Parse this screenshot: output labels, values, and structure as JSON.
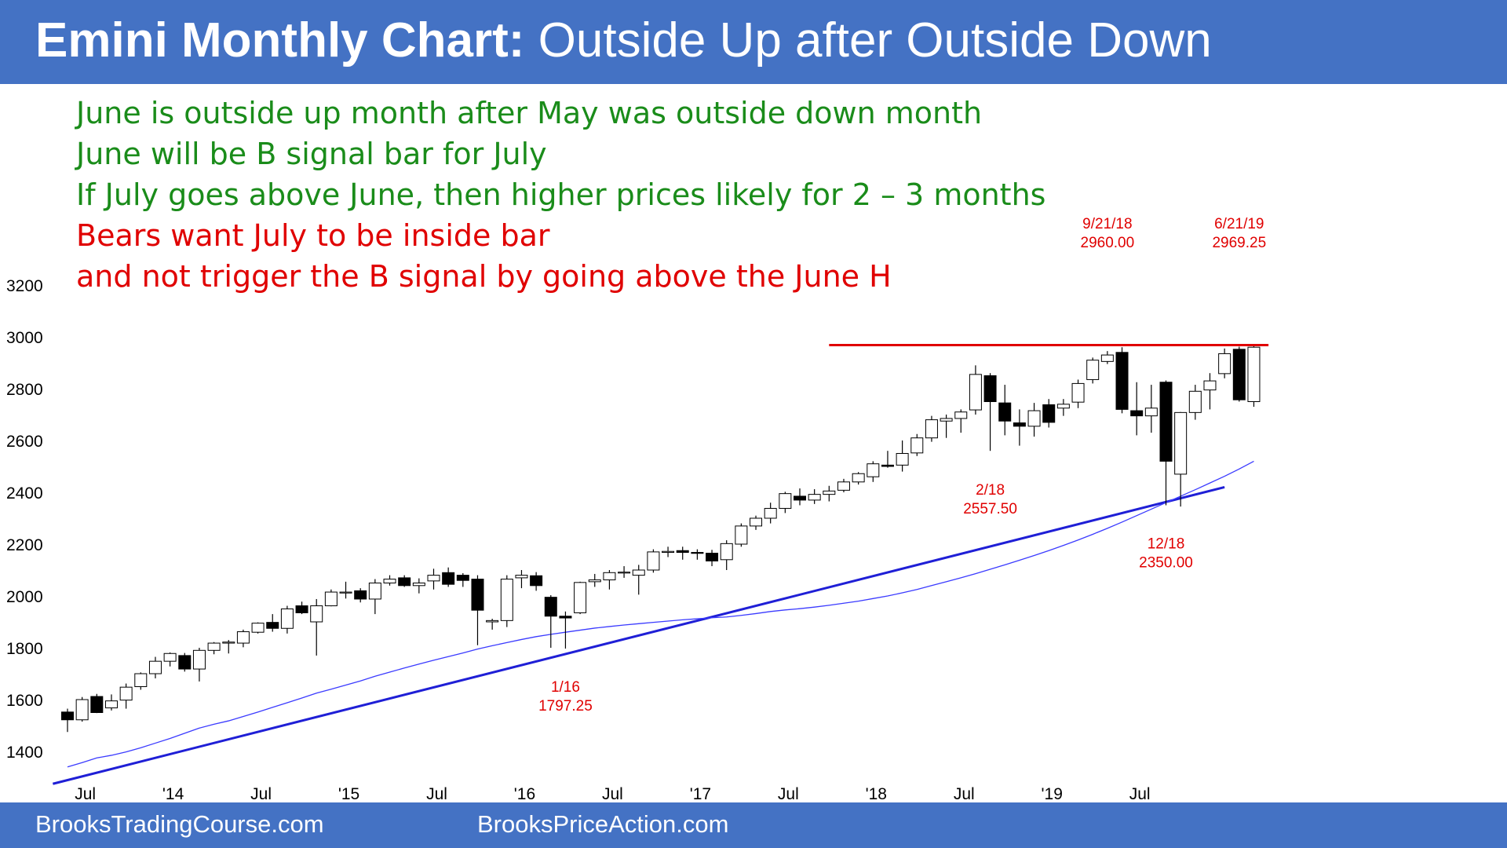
{
  "header": {
    "title_bold": "Emini Monthly Chart:",
    "title_rest": " Outside Up after Outside Down"
  },
  "notes": [
    {
      "text": "June is outside up month after May was outside down month",
      "color": "#1a8c1a"
    },
    {
      "text": "June will be B signal bar for July",
      "color": "#1a8c1a"
    },
    {
      "text": "If July goes above June, then higher prices likely for 2 – 3 months",
      "color": "#1a8c1a"
    },
    {
      "text": "Bears want July to be inside bar",
      "color": "#e00000"
    },
    {
      "text": "and not trigger the B signal by going above the June H",
      "color": "#e00000"
    }
  ],
  "footer": {
    "left": "BrooksTradingCourse.com",
    "right": "BrooksPriceAction.com"
  },
  "colors": {
    "brand": "#4472c4",
    "bull": "#ffffff",
    "bear": "#000000",
    "moving_average": "#3b3bff",
    "trend_line": "#1f1fd6",
    "resistance_line": "#e00000",
    "annotation": "#e00000"
  },
  "chart_data": {
    "type": "candlestick",
    "title": "Emini Monthly Chart",
    "ylim": [
      1300,
      3300
    ],
    "y_ticks": [
      1400,
      1600,
      1800,
      2000,
      2200,
      2400,
      2600,
      2800,
      3000,
      3200
    ],
    "x_ticks": [
      "Jul",
      "'14",
      "Jul",
      "'15",
      "Jul",
      "'16",
      "Jul",
      "'17",
      "Jul",
      "'18",
      "Jul",
      "'19",
      "Jul"
    ],
    "x_tick_index": [
      1,
      7,
      13,
      19,
      25,
      31,
      37,
      43,
      49,
      55,
      61,
      67,
      73
    ],
    "grid": false,
    "first_bar": "2013-06",
    "bars": [
      {
        "o": 1552,
        "h": 1565,
        "l": 1475,
        "c": 1522
      },
      {
        "o": 1522,
        "h": 1610,
        "l": 1515,
        "c": 1600
      },
      {
        "o": 1612,
        "h": 1622,
        "l": 1548,
        "c": 1550
      },
      {
        "o": 1568,
        "h": 1620,
        "l": 1558,
        "c": 1595
      },
      {
        "o": 1598,
        "h": 1662,
        "l": 1565,
        "c": 1648
      },
      {
        "o": 1650,
        "h": 1705,
        "l": 1638,
        "c": 1700
      },
      {
        "o": 1700,
        "h": 1765,
        "l": 1682,
        "c": 1748
      },
      {
        "o": 1748,
        "h": 1782,
        "l": 1728,
        "c": 1778
      },
      {
        "o": 1770,
        "h": 1780,
        "l": 1708,
        "c": 1718
      },
      {
        "o": 1718,
        "h": 1800,
        "l": 1670,
        "c": 1790
      },
      {
        "o": 1790,
        "h": 1822,
        "l": 1775,
        "c": 1818
      },
      {
        "o": 1818,
        "h": 1830,
        "l": 1778,
        "c": 1822
      },
      {
        "o": 1818,
        "h": 1870,
        "l": 1802,
        "c": 1862
      },
      {
        "o": 1860,
        "h": 1898,
        "l": 1855,
        "c": 1895
      },
      {
        "o": 1898,
        "h": 1930,
        "l": 1862,
        "c": 1875
      },
      {
        "o": 1875,
        "h": 1962,
        "l": 1855,
        "c": 1950
      },
      {
        "o": 1962,
        "h": 1978,
        "l": 1930,
        "c": 1935
      },
      {
        "o": 1900,
        "h": 1988,
        "l": 1770,
        "c": 1962
      },
      {
        "o": 1962,
        "h": 2025,
        "l": 1960,
        "c": 2015
      },
      {
        "o": 2015,
        "h": 2055,
        "l": 1990,
        "c": 2015
      },
      {
        "o": 2020,
        "h": 2030,
        "l": 1975,
        "c": 1988
      },
      {
        "o": 1988,
        "h": 2065,
        "l": 1930,
        "c": 2050
      },
      {
        "o": 2050,
        "h": 2080,
        "l": 2040,
        "c": 2065
      },
      {
        "o": 2070,
        "h": 2080,
        "l": 2035,
        "c": 2040
      },
      {
        "o": 2040,
        "h": 2068,
        "l": 2010,
        "c": 2050
      },
      {
        "o": 2058,
        "h": 2105,
        "l": 2025,
        "c": 2080
      },
      {
        "o": 2090,
        "h": 2110,
        "l": 2035,
        "c": 2045
      },
      {
        "o": 2080,
        "h": 2088,
        "l": 2035,
        "c": 2060
      },
      {
        "o": 2065,
        "h": 2080,
        "l": 1810,
        "c": 1945
      },
      {
        "o": 1900,
        "h": 1912,
        "l": 1870,
        "c": 1905
      },
      {
        "o": 1905,
        "h": 2080,
        "l": 1880,
        "c": 2065
      },
      {
        "o": 2070,
        "h": 2100,
        "l": 2030,
        "c": 2080
      },
      {
        "o": 2078,
        "h": 2092,
        "l": 2020,
        "c": 2040
      },
      {
        "o": 1995,
        "h": 2003,
        "l": 1800,
        "c": 1922
      },
      {
        "o": 1922,
        "h": 1940,
        "l": 1797,
        "c": 1915
      },
      {
        "o": 1935,
        "h": 2055,
        "l": 1930,
        "c": 2052
      },
      {
        "o": 2055,
        "h": 2085,
        "l": 2035,
        "c": 2062
      },
      {
        "o": 2062,
        "h": 2100,
        "l": 2025,
        "c": 2090
      },
      {
        "o": 2090,
        "h": 2115,
        "l": 2070,
        "c": 2092
      },
      {
        "o": 2080,
        "h": 2120,
        "l": 2005,
        "c": 2100
      },
      {
        "o": 2100,
        "h": 2180,
        "l": 2090,
        "c": 2170
      },
      {
        "o": 2168,
        "h": 2190,
        "l": 2150,
        "c": 2172
      },
      {
        "o": 2175,
        "h": 2190,
        "l": 2140,
        "c": 2168
      },
      {
        "o": 2168,
        "h": 2180,
        "l": 2140,
        "c": 2165
      },
      {
        "o": 2165,
        "h": 2178,
        "l": 2115,
        "c": 2135
      },
      {
        "o": 2140,
        "h": 2215,
        "l": 2100,
        "c": 2202
      },
      {
        "o": 2200,
        "h": 2280,
        "l": 2190,
        "c": 2270
      },
      {
        "o": 2270,
        "h": 2310,
        "l": 2255,
        "c": 2300
      },
      {
        "o": 2300,
        "h": 2360,
        "l": 2280,
        "c": 2338
      },
      {
        "o": 2338,
        "h": 2402,
        "l": 2320,
        "c": 2395
      },
      {
        "o": 2385,
        "h": 2415,
        "l": 2350,
        "c": 2370
      },
      {
        "o": 2370,
        "h": 2412,
        "l": 2355,
        "c": 2392
      },
      {
        "o": 2392,
        "h": 2425,
        "l": 2365,
        "c": 2405
      },
      {
        "o": 2408,
        "h": 2452,
        "l": 2400,
        "c": 2440
      },
      {
        "o": 2440,
        "h": 2478,
        "l": 2430,
        "c": 2472
      },
      {
        "o": 2460,
        "h": 2520,
        "l": 2440,
        "c": 2510
      },
      {
        "o": 2505,
        "h": 2560,
        "l": 2495,
        "c": 2500
      },
      {
        "o": 2505,
        "h": 2600,
        "l": 2480,
        "c": 2550
      },
      {
        "o": 2552,
        "h": 2625,
        "l": 2540,
        "c": 2610
      },
      {
        "o": 2610,
        "h": 2695,
        "l": 2595,
        "c": 2680
      },
      {
        "o": 2675,
        "h": 2700,
        "l": 2610,
        "c": 2685
      },
      {
        "o": 2685,
        "h": 2720,
        "l": 2630,
        "c": 2710
      },
      {
        "o": 2718,
        "h": 2890,
        "l": 2700,
        "c": 2855
      },
      {
        "o": 2850,
        "h": 2860,
        "l": 2560,
        "c": 2750
      },
      {
        "o": 2745,
        "h": 2815,
        "l": 2620,
        "c": 2675
      },
      {
        "o": 2668,
        "h": 2720,
        "l": 2580,
        "c": 2655
      },
      {
        "o": 2655,
        "h": 2745,
        "l": 2615,
        "c": 2715
      },
      {
        "o": 2738,
        "h": 2760,
        "l": 2650,
        "c": 2670
      },
      {
        "o": 2725,
        "h": 2760,
        "l": 2695,
        "c": 2740
      },
      {
        "o": 2748,
        "h": 2835,
        "l": 2725,
        "c": 2820
      },
      {
        "o": 2835,
        "h": 2920,
        "l": 2820,
        "c": 2910
      },
      {
        "o": 2905,
        "h": 2945,
        "l": 2895,
        "c": 2930
      },
      {
        "o": 2940,
        "h": 2960,
        "l": 2705,
        "c": 2720
      },
      {
        "o": 2715,
        "h": 2825,
        "l": 2620,
        "c": 2695
      },
      {
        "o": 2695,
        "h": 2815,
        "l": 2630,
        "c": 2725
      },
      {
        "o": 2825,
        "h": 2832,
        "l": 2350,
        "c": 2520
      },
      {
        "o": 2470,
        "h": 2710,
        "l": 2345,
        "c": 2708
      },
      {
        "o": 2708,
        "h": 2815,
        "l": 2680,
        "c": 2790
      },
      {
        "o": 2795,
        "h": 2860,
        "l": 2720,
        "c": 2830
      },
      {
        "o": 2858,
        "h": 2955,
        "l": 2840,
        "c": 2935
      },
      {
        "o": 2952,
        "h": 2962,
        "l": 2750,
        "c": 2757
      },
      {
        "o": 2750,
        "h": 2969,
        "l": 2730,
        "c": 2960
      }
    ],
    "moving_average": [
      1340,
      1357,
      1375,
      1385,
      1398,
      1414,
      1432,
      1450,
      1470,
      1490,
      1505,
      1518,
      1535,
      1552,
      1570,
      1588,
      1606,
      1625,
      1640,
      1656,
      1672,
      1690,
      1706,
      1722,
      1737,
      1752,
      1766,
      1780,
      1795,
      1808,
      1820,
      1832,
      1843,
      1852,
      1860,
      1868,
      1876,
      1882,
      1888,
      1893,
      1898,
      1903,
      1908,
      1912,
      1916,
      1919,
      1925,
      1932,
      1940,
      1946,
      1951,
      1957,
      1964,
      1972,
      1980,
      1990,
      2000,
      2012,
      2025,
      2040,
      2055,
      2070,
      2086,
      2103,
      2120,
      2138,
      2156,
      2175,
      2195,
      2216,
      2238,
      2261,
      2285,
      2310,
      2335,
      2360,
      2385,
      2410,
      2436,
      2462,
      2490,
      2520
    ],
    "trend_line": {
      "from": {
        "bar": -1,
        "value": 1275
      },
      "to": {
        "bar": 79,
        "value": 2420
      }
    },
    "resistance_line": {
      "from_bar": 52,
      "to_bar": 82,
      "value": 2968
    },
    "annotations": [
      {
        "bar": 34,
        "lines": [
          "1/16",
          "1797.25"
        ],
        "anchor_value": 1797.25,
        "position": "below"
      },
      {
        "bar": 63,
        "lines": [
          "2/18",
          "2557.50"
        ],
        "anchor_value": 2557.5,
        "position": "below"
      },
      {
        "bar": 75,
        "lines": [
          "12/18",
          "2350.00"
        ],
        "anchor_value": 2350,
        "position": "below"
      },
      {
        "bar": 71,
        "lines": [
          "9/21/18",
          "2960.00"
        ],
        "anchor_value": 2960,
        "position": "above"
      },
      {
        "bar": 80,
        "lines": [
          "6/21/19",
          "2969.25"
        ],
        "anchor_value": 2969.25,
        "position": "above"
      }
    ]
  }
}
